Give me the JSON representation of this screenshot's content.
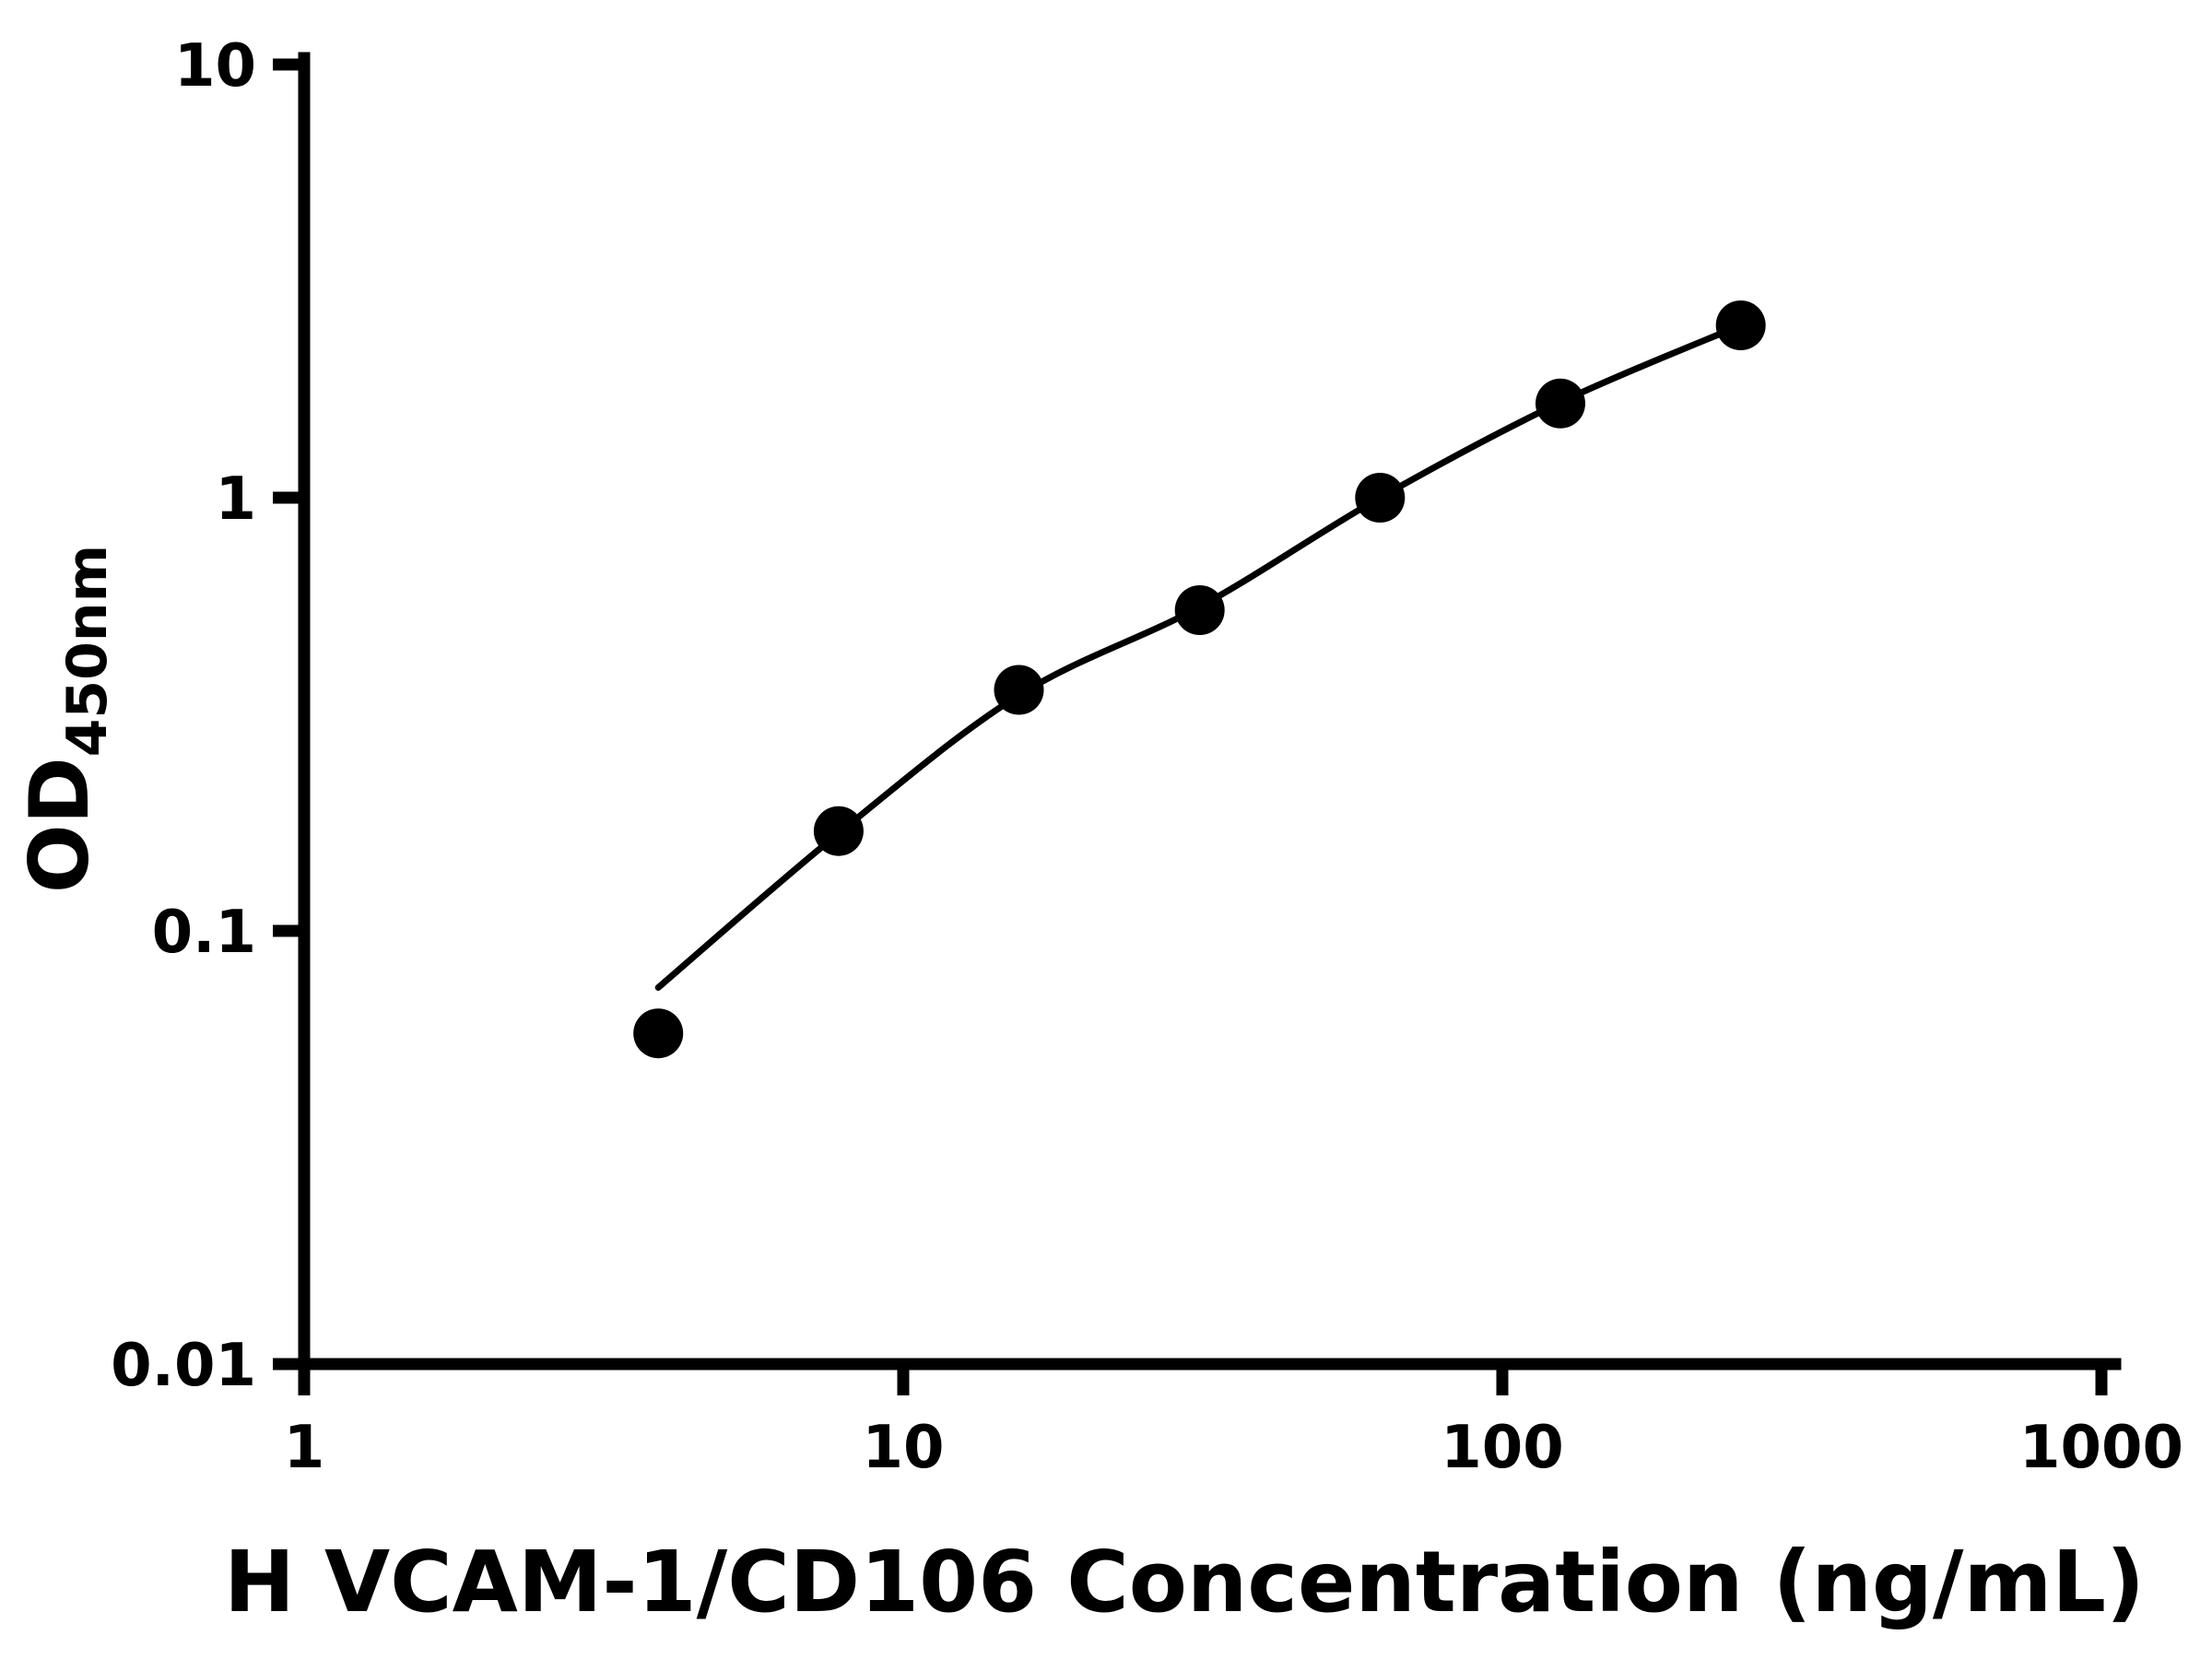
{
  "chart_data": {
    "type": "scatter",
    "title": "",
    "xlabel": "H VCAM-1/CD106 Concentration (ng/mL)",
    "ylabel_main": "OD",
    "ylabel_sub": "450nm",
    "xscale": "log",
    "yscale": "log",
    "xlim": [
      1,
      1000
    ],
    "ylim": [
      0.01,
      10
    ],
    "x_ticks": [
      1,
      10,
      100,
      1000
    ],
    "x_tick_labels": [
      "1",
      "10",
      "100",
      "1000"
    ],
    "y_ticks": [
      0.01,
      0.1,
      1,
      10
    ],
    "y_tick_labels": [
      "0.01",
      "0.1",
      "1",
      "10"
    ],
    "grid": false,
    "legend": "none",
    "marker_color": "#000000",
    "line_color": "#000000",
    "background_color": "#ffffff",
    "x": [
      3.9,
      7.8,
      15.6,
      31.25,
      62.5,
      125,
      250
    ],
    "y": [
      0.058,
      0.17,
      0.36,
      0.55,
      1.0,
      1.65,
      2.5
    ],
    "fit_curve": [
      [
        3.9,
        0.074
      ],
      [
        7.8,
        0.168
      ],
      [
        15.6,
        0.35
      ],
      [
        31.25,
        0.56
      ],
      [
        62.5,
        1.0
      ],
      [
        125,
        1.66
      ],
      [
        250,
        2.5
      ]
    ]
  }
}
